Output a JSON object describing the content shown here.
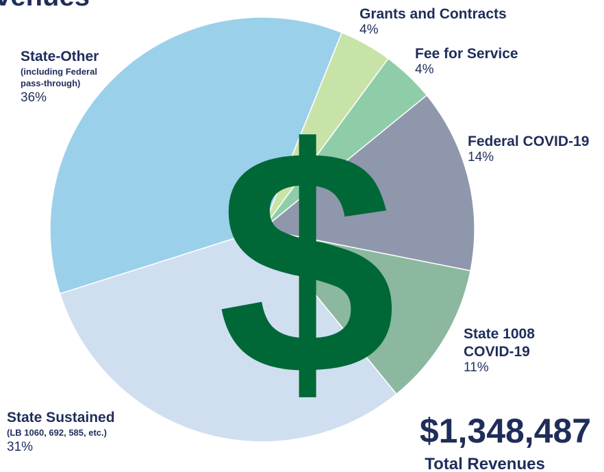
{
  "chart_data": {
    "type": "pie",
    "title": "Revenues",
    "categories": [
      "Grants and Contracts",
      "Fee for Service",
      "Federal COVID-19",
      "State 1008 COVID-19",
      "State Sustained",
      "State-Other"
    ],
    "subtitles": [
      null,
      null,
      null,
      null,
      "(LB 1060, 692, 585, etc.)",
      "(including Federal pass-through)"
    ],
    "values": [
      4,
      4,
      14,
      11,
      31,
      36
    ],
    "value_labels": [
      "4%",
      "4%",
      "14%",
      "11%",
      "31%",
      "36%"
    ],
    "colors": [
      "#c8e3a8",
      "#8ecda8",
      "#8f97ac",
      "#8bb89e",
      "#cfdff0",
      "#9bd0ea"
    ],
    "start_angle": 22,
    "center_symbol": "$",
    "total": "$1,348,487",
    "total_label": "Total Revenues"
  }
}
